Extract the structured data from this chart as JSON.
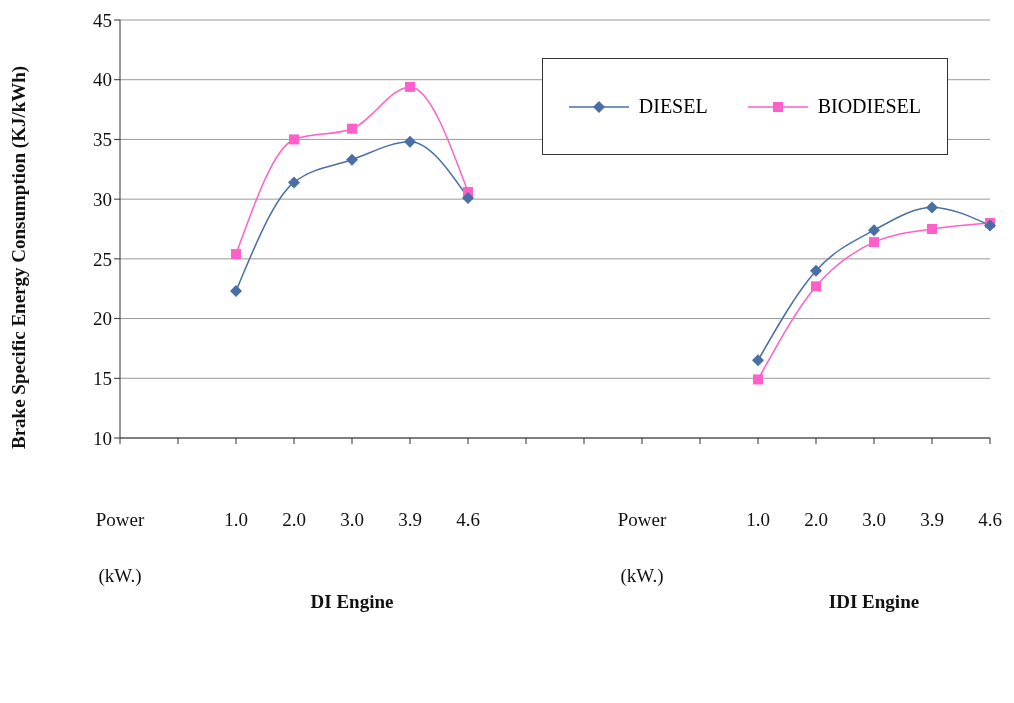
{
  "chart_data": {
    "type": "line",
    "ylabel": "Brake Specific Energy Consumption (KJ/kWh)",
    "categories": [
      "Power",
      null,
      "1.0",
      "2.0",
      "3.0",
      "3.9",
      "4.6",
      null,
      null,
      "Power",
      null,
      "1.0",
      "2.0",
      "3.0",
      "3.9",
      "4.6"
    ],
    "series": [
      {
        "name": "DIESEL",
        "color": "#4a6fa5",
        "marker": "diamond",
        "values": [
          null,
          null,
          22.3,
          31.4,
          33.3,
          34.8,
          30.1,
          null,
          null,
          null,
          null,
          16.5,
          24.0,
          27.4,
          29.3,
          27.8
        ]
      },
      {
        "name": "BIODIESEL",
        "color": "#ff5fc8",
        "marker": "square",
        "values": [
          null,
          null,
          25.4,
          35.0,
          35.9,
          39.4,
          30.6,
          null,
          null,
          null,
          null,
          14.9,
          22.7,
          26.4,
          27.5,
          28.0
        ]
      }
    ],
    "ylim": [
      10,
      45
    ],
    "yticks": [
      10,
      15,
      20,
      25,
      30,
      35,
      40,
      45
    ],
    "grid": "y",
    "legend": "top right",
    "line_style": "solid",
    "annotations": [
      "(kW.)",
      "DI Engine",
      "(kW.)",
      "IDI Engine"
    ]
  }
}
